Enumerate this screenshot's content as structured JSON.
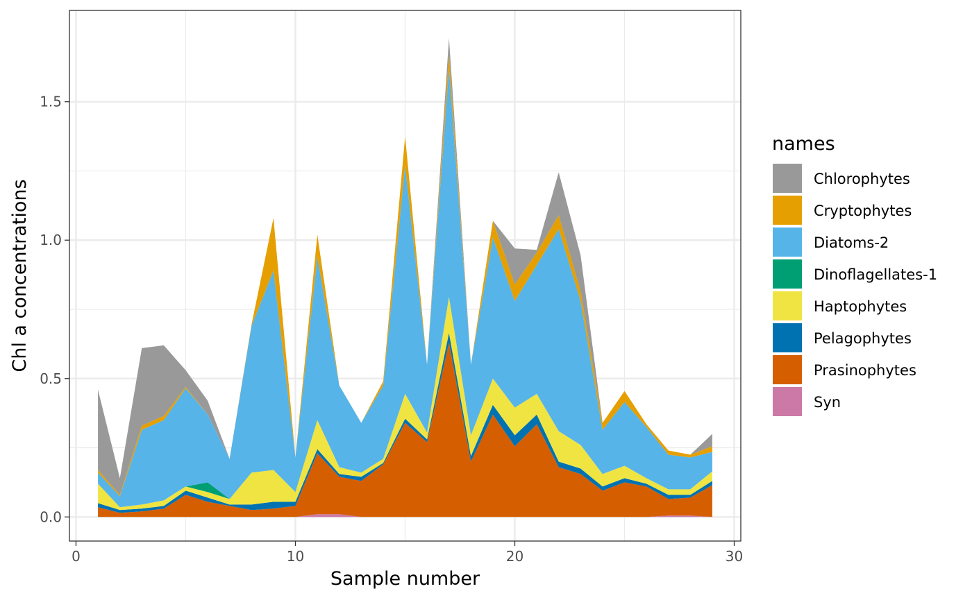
{
  "chart_data": {
    "type": "area",
    "stacked": true,
    "xlabel": "Sample number",
    "ylabel": "Chl a concentrations",
    "xlim": [
      -0.3,
      30.3
    ],
    "ylim": [
      -0.087,
      1.83
    ],
    "x_ticks": [
      0,
      10,
      20,
      30
    ],
    "x_tick_labels": [
      "0",
      "10",
      "20",
      "30"
    ],
    "y_ticks": [
      0.0,
      0.5,
      1.0,
      1.5
    ],
    "y_tick_labels": [
      "0.0",
      "0.5",
      "1.0",
      "1.5"
    ],
    "grid": true,
    "legend_title": "names",
    "legend_position": "right",
    "x": [
      1,
      2,
      3,
      4,
      5,
      6,
      7,
      8,
      9,
      10,
      11,
      12,
      13,
      14,
      15,
      16,
      17,
      18,
      19,
      20,
      21,
      22,
      23,
      24,
      25,
      26,
      27,
      28,
      29
    ],
    "series": [
      {
        "name": "Chlorophytes",
        "color": "#999999",
        "values": [
          0.29,
          0.06,
          0.28,
          0.255,
          0.06,
          0.05,
          0.0,
          0.0,
          0.0,
          0.0,
          0.0,
          0.0,
          0.0,
          0.0,
          0.0,
          0.0,
          0.06,
          0.0,
          0.0,
          0.13,
          0.01,
          0.155,
          0.13,
          0.0,
          0.0,
          0.0,
          0.0,
          0.0,
          0.045
        ]
      },
      {
        "name": "Cryptophytes",
        "color": "#E69F00",
        "values": [
          0.01,
          0.005,
          0.015,
          0.015,
          0.005,
          0.0,
          0.0,
          0.005,
          0.19,
          0.0,
          0.08,
          0.0,
          0.0,
          0.015,
          0.105,
          0.0,
          0.05,
          0.0,
          0.06,
          0.06,
          0.045,
          0.05,
          0.035,
          0.025,
          0.04,
          0.01,
          0.015,
          0.01,
          0.02
        ]
      },
      {
        "name": "Diatoms-2",
        "color": "#56B4E9",
        "values": [
          0.04,
          0.04,
          0.27,
          0.29,
          0.355,
          0.245,
          0.145,
          0.53,
          0.72,
          0.125,
          0.59,
          0.295,
          0.18,
          0.265,
          0.825,
          0.245,
          0.825,
          0.255,
          0.51,
          0.385,
          0.465,
          0.73,
          0.52,
          0.16,
          0.23,
          0.185,
          0.125,
          0.115,
          0.07
        ]
      },
      {
        "name": "Dinoflagellates-1",
        "color": "#009E73",
        "values": [
          0.0,
          0.0,
          0.0,
          0.0,
          0.0,
          0.035,
          0.0,
          0.0,
          0.0,
          0.0,
          0.0,
          0.0,
          0.0,
          0.0,
          0.0,
          0.0,
          0.0,
          0.0,
          0.0,
          0.0,
          0.0,
          0.0,
          0.0,
          0.0,
          0.0,
          0.0,
          0.0,
          0.0,
          0.0
        ]
      },
      {
        "name": "Haptophytes",
        "color": "#F0E442",
        "values": [
          0.07,
          0.01,
          0.015,
          0.02,
          0.015,
          0.02,
          0.02,
          0.115,
          0.115,
          0.035,
          0.105,
          0.025,
          0.015,
          0.015,
          0.09,
          0.025,
          0.13,
          0.075,
          0.095,
          0.1,
          0.075,
          0.11,
          0.085,
          0.045,
          0.045,
          0.02,
          0.02,
          0.02,
          0.035
        ]
      },
      {
        "name": "Pelagophytes",
        "color": "#0072B2",
        "values": [
          0.015,
          0.01,
          0.01,
          0.01,
          0.015,
          0.015,
          0.005,
          0.02,
          0.025,
          0.015,
          0.015,
          0.01,
          0.015,
          0.005,
          0.015,
          0.01,
          0.035,
          0.02,
          0.035,
          0.04,
          0.035,
          0.02,
          0.02,
          0.015,
          0.015,
          0.01,
          0.015,
          0.01,
          0.015
        ]
      },
      {
        "name": "Prasinophytes",
        "color": "#D55E00",
        "values": [
          0.035,
          0.015,
          0.02,
          0.03,
          0.08,
          0.055,
          0.04,
          0.025,
          0.03,
          0.04,
          0.22,
          0.135,
          0.13,
          0.19,
          0.34,
          0.27,
          0.63,
          0.2,
          0.37,
          0.255,
          0.335,
          0.18,
          0.155,
          0.095,
          0.125,
          0.11,
          0.06,
          0.065,
          0.115
        ]
      },
      {
        "name": "Syn",
        "color": "#CC79A7",
        "values": [
          0.0,
          0.0,
          0.0,
          0.0,
          0.0,
          0.0,
          0.0,
          0.0,
          0.0,
          0.0,
          0.01,
          0.01,
          0.0,
          0.0,
          0.0,
          0.0,
          0.0,
          0.0,
          0.0,
          0.0,
          0.0,
          0.0,
          0.0,
          0.0,
          0.0,
          0.0,
          0.005,
          0.005,
          0.0
        ]
      }
    ]
  }
}
